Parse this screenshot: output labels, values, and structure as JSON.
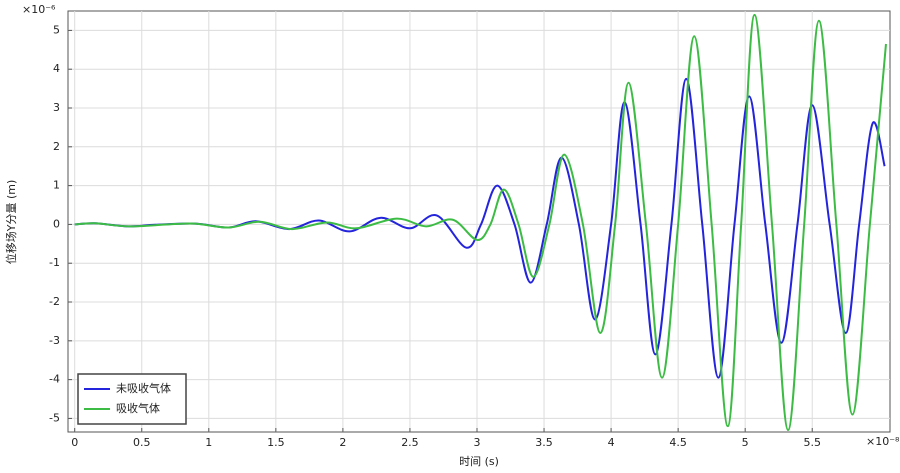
{
  "chart_data": {
    "type": "line",
    "x_label": "时间 (s)",
    "y_label": "位移场Y分量 (m)",
    "x_multiplier": "×10⁻⁸",
    "y_multiplier": "×10⁻⁶",
    "xlim": [
      -0.05,
      6.08
    ],
    "xticks": [
      0,
      0.5,
      1,
      1.5,
      2,
      2.5,
      3,
      3.5,
      4,
      4.5,
      5,
      5.5
    ],
    "ylim": [
      -5.35,
      5.5
    ],
    "yticks": [
      -5,
      -4,
      -3,
      -2,
      -1,
      0,
      1,
      2,
      3,
      4,
      5
    ],
    "grid": true,
    "legend": "lower left",
    "series": [
      {
        "name": "未吸收气体",
        "color": "#2424dc",
        "x": [
          0,
          0.15,
          0.4,
          0.6,
          0.9,
          1.15,
          1.35,
          1.6,
          1.82,
          2.05,
          2.28,
          2.5,
          2.7,
          2.92,
          3.03,
          3.15,
          3.28,
          3.4,
          3.52,
          3.63,
          3.76,
          3.88,
          4.0,
          4.1,
          4.22,
          4.33,
          4.45,
          4.56,
          4.68,
          4.8,
          4.92,
          5.03,
          5.15,
          5.27,
          5.39,
          5.5,
          5.63,
          5.75,
          5.85,
          5.95,
          6.04
        ],
        "values": [
          0,
          0.03,
          -0.05,
          -0.01,
          0.02,
          -0.08,
          0.08,
          -0.12,
          0.1,
          -0.18,
          0.17,
          -0.1,
          0.23,
          -0.6,
          0,
          1.0,
          0,
          -1.5,
          0,
          1.72,
          0,
          -2.45,
          0,
          3.15,
          0,
          -3.35,
          0,
          3.75,
          0,
          -3.95,
          0,
          3.3,
          0,
          -3.05,
          0,
          3.07,
          0,
          -2.8,
          0,
          2.6,
          1.5
        ]
      },
      {
        "name": "吸收气体",
        "color": "#3cbc44",
        "x": [
          0,
          0.15,
          0.4,
          0.7,
          0.9,
          1.15,
          1.38,
          1.62,
          1.88,
          2.1,
          2.4,
          2.62,
          2.82,
          3.0,
          3.1,
          3.2,
          3.31,
          3.42,
          3.54,
          3.65,
          3.79,
          3.92,
          4.03,
          4.13,
          4.26,
          4.38,
          4.5,
          4.62,
          4.75,
          4.87,
          4.97,
          5.07,
          5.2,
          5.32,
          5.44,
          5.55,
          5.68,
          5.8,
          5.93,
          6.05
        ],
        "values": [
          0,
          0.03,
          -0.05,
          0,
          0.02,
          -0.08,
          0.07,
          -0.12,
          0.05,
          -0.1,
          0.15,
          -0.05,
          0.12,
          -0.4,
          0,
          0.9,
          0,
          -1.35,
          0,
          1.8,
          0,
          -2.8,
          0,
          3.65,
          0,
          -3.95,
          0,
          4.85,
          0,
          -5.2,
          0,
          5.4,
          0,
          -5.3,
          0,
          5.25,
          0,
          -4.9,
          0,
          4.65
        ]
      }
    ]
  }
}
